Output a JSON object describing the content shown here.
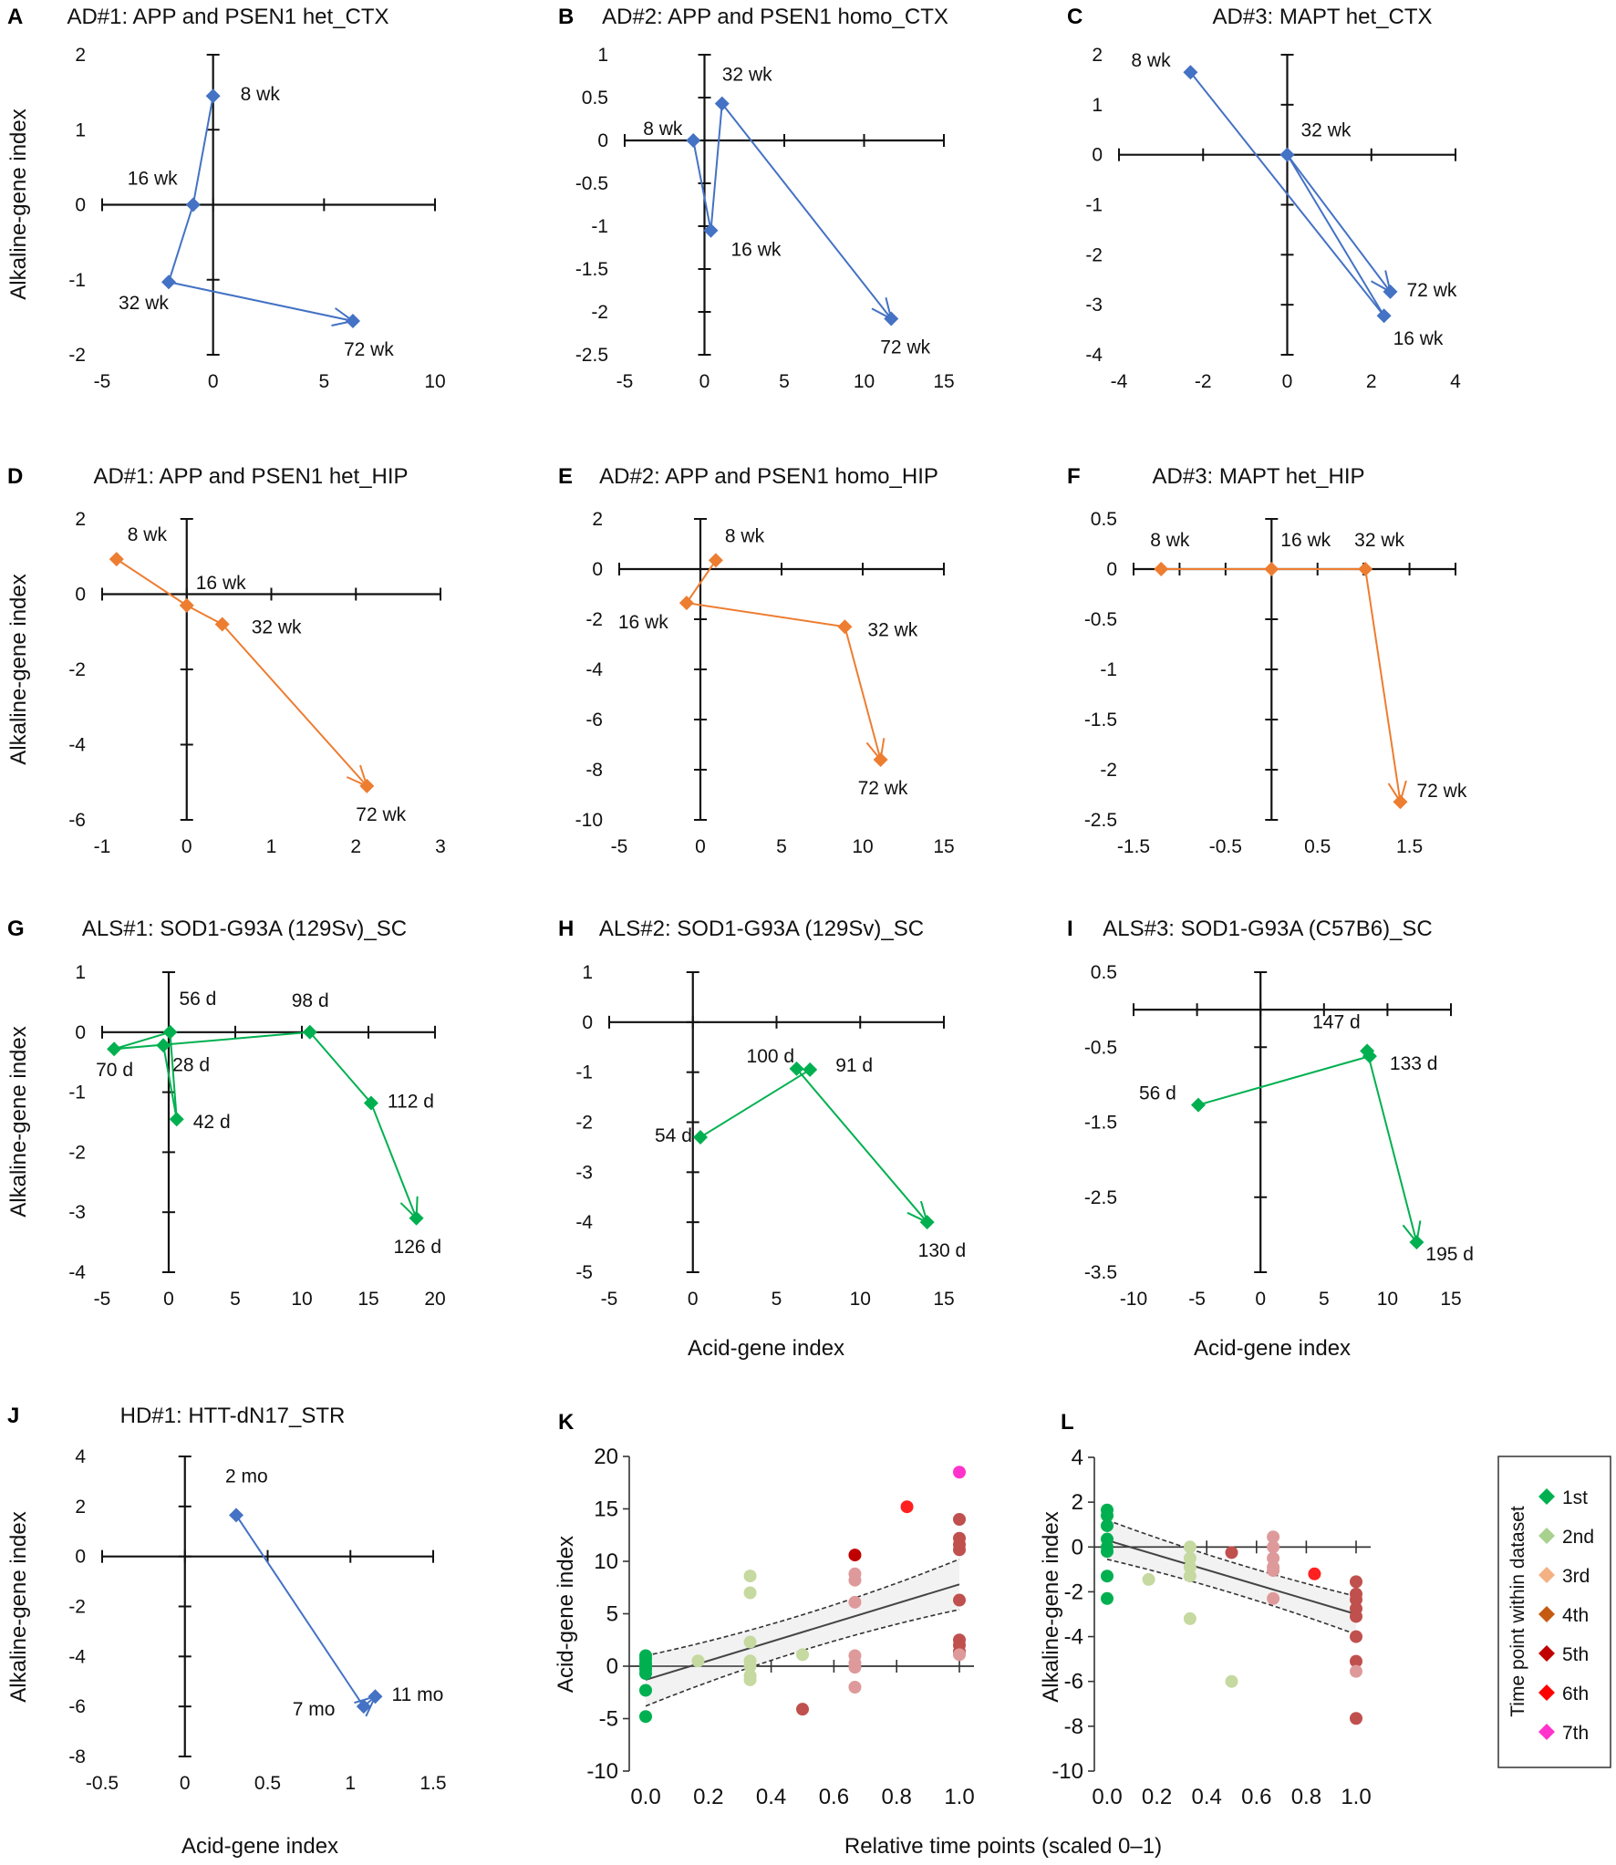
{
  "figure": {
    "shared_labels": {
      "y_alkaline": "Alkaline-gene index",
      "y_acid": "Acid-gene index",
      "x_acid": "Acid-gene index",
      "x_relative": "Relative time points (scaled 0–1)"
    },
    "colors": {
      "blue": "#4472C4",
      "orange": "#ED7D31",
      "green": "#00B050"
    }
  },
  "chart_data": [
    {
      "id": "A",
      "type": "line",
      "title": "AD#1: APP and PSEN1 het_CTX",
      "xlabel": "",
      "ylabel": "Alkaline-gene index",
      "xlim": [
        -5,
        10
      ],
      "ylim": [
        -2,
        2
      ],
      "xticks": [
        -5,
        0,
        5,
        10
      ],
      "xtick_labels": [
        "-5",
        "0",
        "5",
        "10"
      ],
      "yticks": [
        -2,
        -1,
        0,
        1,
        2
      ],
      "ytick_labels": [
        "-2",
        "-1",
        "0",
        "1",
        "2"
      ],
      "color": "blue",
      "points": [
        {
          "label": "8 wk",
          "x": 0.0,
          "y": 1.45
        },
        {
          "label": "16 wk",
          "x": -0.9,
          "y": 0.0
        },
        {
          "label": "32 wk",
          "x": -2.0,
          "y": -1.03
        },
        {
          "label": "72 wk",
          "x": 6.3,
          "y": -1.55
        }
      ]
    },
    {
      "id": "B",
      "type": "line",
      "title": "AD#2: APP and PSEN1 homo_CTX",
      "xlabel": "",
      "ylabel": "",
      "xlim": [
        -5,
        15
      ],
      "ylim": [
        -2.5,
        1
      ],
      "xticks": [
        -5,
        0,
        5,
        10,
        15
      ],
      "xtick_labels": [
        "-5",
        "0",
        "5",
        "10",
        "15"
      ],
      "yticks": [
        -2.5,
        -2,
        -1.5,
        -1,
        -0.5,
        0,
        0.5,
        1
      ],
      "ytick_labels": [
        "-2.5",
        "-2",
        "-1.5",
        "-1",
        "-0.5",
        "0",
        "0.5",
        "1"
      ],
      "color": "blue",
      "points": [
        {
          "label": "8 wk",
          "x": -0.7,
          "y": 0.0
        },
        {
          "label": "16 wk",
          "x": 0.4,
          "y": -1.05
        },
        {
          "label": "32 wk",
          "x": 1.1,
          "y": 0.43
        },
        {
          "label": "72 wk",
          "x": 11.7,
          "y": -2.08
        }
      ]
    },
    {
      "id": "C",
      "type": "line",
      "title": "AD#3: MAPT het_CTX",
      "xlabel": "",
      "ylabel": "",
      "xlim": [
        -4,
        4
      ],
      "ylim": [
        -4,
        2
      ],
      "xticks": [
        -4,
        -2,
        0,
        2,
        4
      ],
      "xtick_labels": [
        "-4",
        "-2",
        "0",
        "2",
        "4"
      ],
      "yticks": [
        -4,
        -3,
        -2,
        -1,
        0,
        1,
        2
      ],
      "ytick_labels": [
        "-4",
        "-3",
        "-2",
        "-1",
        "0",
        "1",
        "2"
      ],
      "color": "blue",
      "points": [
        {
          "label": "8 wk",
          "x": -2.3,
          "y": 1.65
        },
        {
          "label": "16 wk",
          "x": 2.3,
          "y": -3.22
        },
        {
          "label": "32 wk",
          "x": 0.0,
          "y": 0.0
        },
        {
          "label": "72  wk",
          "x": 2.45,
          "y": -2.74
        }
      ]
    },
    {
      "id": "D",
      "type": "line",
      "title": "AD#1: APP and PSEN1 het_HIP",
      "xlabel": "",
      "ylabel": "Alkaline-gene index",
      "xlim": [
        -1,
        3
      ],
      "ylim": [
        -6,
        2
      ],
      "xticks": [
        -1,
        0,
        1,
        2,
        3
      ],
      "xtick_labels": [
        "-1",
        "0",
        "1",
        "2",
        "3"
      ],
      "yticks": [
        -6,
        -4,
        -2,
        0,
        2
      ],
      "ytick_labels": [
        "-6",
        "-4",
        "-2",
        "0",
        "2"
      ],
      "color": "orange",
      "points": [
        {
          "label": "8 wk",
          "x": -0.83,
          "y": 0.93
        },
        {
          "label": "16 wk",
          "x": 0.0,
          "y": -0.3
        },
        {
          "label": "32 wk",
          "x": 0.42,
          "y": -0.8
        },
        {
          "label": "72 wk",
          "x": 2.13,
          "y": -5.1
        }
      ]
    },
    {
      "id": "E",
      "type": "line",
      "title": "AD#2: APP and PSEN1 homo_HIP",
      "xlabel": "",
      "ylabel": "",
      "xlim": [
        -5,
        15
      ],
      "ylim": [
        -10,
        2
      ],
      "xticks": [
        -5,
        0,
        5,
        10,
        15
      ],
      "xtick_labels": [
        "-5",
        "0",
        "5",
        "10",
        "15"
      ],
      "yticks": [
        -10,
        -8,
        -6,
        -4,
        -2,
        0,
        2
      ],
      "ytick_labels": [
        "-10",
        "-8",
        "-6",
        "-4",
        "-2",
        "0",
        "2"
      ],
      "color": "orange",
      "points": [
        {
          "label": "8 wk",
          "x": 0.95,
          "y": 0.35
        },
        {
          "label": "16 wk",
          "x": -0.85,
          "y": -1.35
        },
        {
          "label": "32 wk",
          "x": 8.9,
          "y": -2.3
        },
        {
          "label": "72 wk",
          "x": 11.1,
          "y": -7.6
        }
      ]
    },
    {
      "id": "F",
      "type": "line",
      "title": "AD#3: MAPT het_HIP",
      "xlabel": "",
      "ylabel": "",
      "xlim": [
        -1.5,
        2
      ],
      "ylim": [
        -2.5,
        0.5
      ],
      "xticks": [
        -1.5,
        -1,
        -0.5,
        0,
        0.5,
        1,
        1.5,
        2
      ],
      "xtick_labels": [
        "-1.5",
        "",
        "-0.5",
        "",
        "0.5",
        "",
        "1.5",
        ""
      ],
      "yticks": [
        -2.5,
        -2,
        -1.5,
        -1,
        -0.5,
        0,
        0.5
      ],
      "ytick_labels": [
        "-2.5",
        "-2",
        "-1.5",
        "-1",
        "-0.5",
        "0",
        "0.5"
      ],
      "color": "orange",
      "points": [
        {
          "label": "8 wk",
          "x": -1.2,
          "y": 0.0
        },
        {
          "label": "16 wk",
          "x": 0.0,
          "y": 0.0
        },
        {
          "label": "32 wk",
          "x": 1.02,
          "y": 0.0
        },
        {
          "label": "72 wk",
          "x": 1.4,
          "y": -2.32
        }
      ]
    },
    {
      "id": "G",
      "type": "line",
      "title": "ALS#1: SOD1-G93A (129Sv)_SC",
      "xlabel": "",
      "ylabel": "Alkaline-gene index",
      "xlim": [
        -5,
        20
      ],
      "ylim": [
        -4,
        1
      ],
      "xticks": [
        -5,
        0,
        5,
        10,
        15,
        20
      ],
      "xtick_labels": [
        "-5",
        "0",
        "5",
        "10",
        "15",
        "20"
      ],
      "yticks": [
        -4,
        -3,
        -2,
        -1,
        0,
        1
      ],
      "ytick_labels": [
        "-4",
        "-3",
        "-2",
        "-1",
        "0",
        "1"
      ],
      "color": "green",
      "points": [
        {
          "label": "28 d",
          "x": -0.4,
          "y": -0.22
        },
        {
          "label": "42 d",
          "x": 0.6,
          "y": -1.45
        },
        {
          "label": "56 d",
          "x": 0.1,
          "y": 0.0
        },
        {
          "label": "70 d",
          "x": -4.1,
          "y": -0.28
        },
        {
          "label": "98 d",
          "x": 10.6,
          "y": 0.0
        },
        {
          "label": "112 d",
          "x": 15.2,
          "y": -1.18
        },
        {
          "label": "126 d",
          "x": 18.6,
          "y": -3.1
        }
      ]
    },
    {
      "id": "H",
      "type": "line",
      "title": "ALS#2: SOD1-G93A (129Sv)_SC",
      "xlabel": "Acid-gene index",
      "ylabel": "",
      "xlim": [
        -5,
        15
      ],
      "ylim": [
        -5,
        1
      ],
      "xticks": [
        -5,
        0,
        5,
        10,
        15
      ],
      "xtick_labels": [
        "-5",
        "0",
        "5",
        "10",
        "15"
      ],
      "yticks": [
        -5,
        -4,
        -3,
        -2,
        -1,
        0,
        1
      ],
      "ytick_labels": [
        "-5",
        "-4",
        "-3",
        "-2",
        "-1",
        "0",
        "1"
      ],
      "color": "green",
      "points": [
        {
          "label": "54 d",
          "x": 0.45,
          "y": -2.3
        },
        {
          "label": "91 d",
          "x": 7.0,
          "y": -0.95
        },
        {
          "label": "100 d",
          "x": 6.2,
          "y": -0.93
        },
        {
          "label": "130 d",
          "x": 14.0,
          "y": -4.0
        }
      ]
    },
    {
      "id": "I",
      "type": "line",
      "title": "ALS#3: SOD1-G93A (C57B6)_SC",
      "xlabel": "Acid-gene index",
      "ylabel": "",
      "xlim": [
        -10,
        15
      ],
      "ylim": [
        -3.5,
        0.5
      ],
      "xticks": [
        -10,
        -5,
        0,
        5,
        10,
        15
      ],
      "xtick_labels": [
        "-10",
        "-5",
        "0",
        "5",
        "10",
        "15"
      ],
      "yticks": [
        -3.5,
        -2.5,
        -1.5,
        -0.5,
        0.5
      ],
      "ytick_labels": [
        "-3.5",
        "-2.5",
        "-1.5",
        "-0.5",
        "0.5"
      ],
      "color": "green",
      "points": [
        {
          "label": "56 d",
          "x": -4.9,
          "y": -1.27
        },
        {
          "label": "133 d",
          "x": 8.6,
          "y": -0.62
        },
        {
          "label": "147 d",
          "x": 8.4,
          "y": -0.55
        },
        {
          "label": "195 d",
          "x": 12.3,
          "y": -3.1
        }
      ]
    },
    {
      "id": "J",
      "type": "line",
      "title": "HD#1: HTT-dN17_STR",
      "xlabel": "Acid-gene index",
      "ylabel": "Alkaline-gene index",
      "xlim": [
        -0.5,
        1.5
      ],
      "ylim": [
        -8,
        4
      ],
      "xticks": [
        -0.5,
        0,
        0.5,
        1,
        1.5
      ],
      "xtick_labels": [
        "-0.5",
        "0",
        "0.5",
        "1",
        "1.5"
      ],
      "yticks": [
        -8,
        -6,
        -4,
        -2,
        0,
        2,
        4
      ],
      "ytick_labels": [
        "-8",
        "-6",
        "-4",
        "-2",
        "0",
        "2",
        "4"
      ],
      "color": "blue",
      "points": [
        {
          "label": "2 mo",
          "x": 0.31,
          "y": 1.65
        },
        {
          "label": "7 mo",
          "x": 1.08,
          "y": -6.0
        },
        {
          "label": "11 mo",
          "x": 1.15,
          "y": -5.6
        }
      ]
    },
    {
      "id": "K",
      "type": "scatter",
      "title": "",
      "xlabel": "Relative time points (scaled 0–1)",
      "ylabel": "Acid-gene index",
      "xlim": [
        0,
        1
      ],
      "ylim": [
        -10,
        20
      ],
      "xticks": [
        0,
        0.2,
        0.4,
        0.6,
        0.8,
        1.0
      ],
      "xtick_labels": [
        "0.0",
        "0.2",
        "0.4",
        "0.6",
        "0.8",
        "1.0"
      ],
      "yticks": [
        -10,
        -5,
        0,
        5,
        10,
        15,
        20
      ],
      "ytick_labels": [
        "-10",
        "-5",
        "0",
        "5",
        "10",
        "15",
        "20"
      ],
      "regression": {
        "x": [
          0,
          1
        ],
        "y": [
          -1.3,
          7.8
        ],
        "ci_upper": [
          1.0,
          10.2
        ],
        "ci_mid_upper": [
          3.2,
          6.2
        ],
        "ci_lower": [
          -3.8,
          5.4
        ],
        "ci_mid_lower": [
          0.1,
          3.3
        ]
      },
      "points": [
        {
          "x": 0.0,
          "y": 1.0,
          "rank": 1
        },
        {
          "x": 0.0,
          "y": 0.7,
          "rank": 1
        },
        {
          "x": 0.0,
          "y": 0.3,
          "rank": 1
        },
        {
          "x": 0.0,
          "y": 0.0,
          "rank": 1
        },
        {
          "x": 0.0,
          "y": -0.3,
          "rank": 1
        },
        {
          "x": 0.0,
          "y": -0.7,
          "rank": 1
        },
        {
          "x": 0.0,
          "y": -2.3,
          "rank": 1
        },
        {
          "x": 0.0,
          "y": -4.8,
          "rank": 1
        },
        {
          "x": 0.167,
          "y": 0.5,
          "rank": 2
        },
        {
          "x": 0.333,
          "y": 8.6,
          "rank": 2
        },
        {
          "x": 0.333,
          "y": 7.0,
          "rank": 2
        },
        {
          "x": 0.333,
          "y": 2.3,
          "rank": 2
        },
        {
          "x": 0.333,
          "y": 0.5,
          "rank": 2
        },
        {
          "x": 0.333,
          "y": 0.0,
          "rank": 2
        },
        {
          "x": 0.333,
          "y": -0.9,
          "rank": 2
        },
        {
          "x": 0.333,
          "y": -1.3,
          "rank": 2
        },
        {
          "x": 0.5,
          "y": 1.1,
          "rank": 2
        },
        {
          "x": 0.5,
          "y": -4.1,
          "rank": 4
        },
        {
          "x": 0.667,
          "y": 10.6,
          "rank": 5
        },
        {
          "x": 0.667,
          "y": 8.8,
          "rank": 3
        },
        {
          "x": 0.667,
          "y": 8.2,
          "rank": 3
        },
        {
          "x": 0.667,
          "y": 6.1,
          "rank": 3
        },
        {
          "x": 0.667,
          "y": 1.0,
          "rank": 3
        },
        {
          "x": 0.667,
          "y": 0.3,
          "rank": 3
        },
        {
          "x": 0.667,
          "y": -0.1,
          "rank": 3
        },
        {
          "x": 0.667,
          "y": -2.0,
          "rank": 3
        },
        {
          "x": 0.833,
          "y": 15.2,
          "rank": 6
        },
        {
          "x": 1.0,
          "y": 18.5,
          "rank": 7
        },
        {
          "x": 1.0,
          "y": 14.0,
          "rank": 4
        },
        {
          "x": 1.0,
          "y": 12.2,
          "rank": 4
        },
        {
          "x": 1.0,
          "y": 11.6,
          "rank": 4
        },
        {
          "x": 1.0,
          "y": 11.1,
          "rank": 4
        },
        {
          "x": 1.0,
          "y": 6.3,
          "rank": 4
        },
        {
          "x": 1.0,
          "y": 2.5,
          "rank": 4
        },
        {
          "x": 1.0,
          "y": 2.0,
          "rank": 4
        },
        {
          "x": 1.0,
          "y": 1.4,
          "rank": 4
        },
        {
          "x": 1.0,
          "y": 1.1,
          "rank": 3
        }
      ]
    },
    {
      "id": "L",
      "type": "scatter",
      "title": "",
      "xlabel": "Relative time points (scaled 0–1)",
      "ylabel": "Alkaline-gene index",
      "xlim": [
        0,
        1
      ],
      "ylim": [
        -10,
        4
      ],
      "xticks": [
        0,
        0.2,
        0.4,
        0.6,
        0.8,
        1.0
      ],
      "xtick_labels": [
        "0.0",
        "0.2",
        "0.4",
        "0.6",
        "0.8",
        "1.0"
      ],
      "yticks": [
        -10,
        -8,
        -6,
        -4,
        -2,
        0,
        2,
        4
      ],
      "ytick_labels": [
        "-10",
        "-8",
        "-6",
        "-4",
        "-2",
        "0",
        "2",
        "4"
      ],
      "regression": {
        "x": [
          0,
          1
        ],
        "y": [
          0.3,
          -3.0
        ],
        "ci_upper": [
          1.2,
          -2.2
        ],
        "ci_lower": [
          -0.55,
          -3.9
        ]
      },
      "points": [
        {
          "x": 0.0,
          "y": 1.65,
          "rank": 1
        },
        {
          "x": 0.0,
          "y": 1.4,
          "rank": 1
        },
        {
          "x": 0.0,
          "y": 0.95,
          "rank": 1
        },
        {
          "x": 0.0,
          "y": 0.35,
          "rank": 1
        },
        {
          "x": 0.0,
          "y": 0.0,
          "rank": 1
        },
        {
          "x": 0.0,
          "y": -0.2,
          "rank": 1
        },
        {
          "x": 0.0,
          "y": -1.3,
          "rank": 1
        },
        {
          "x": 0.0,
          "y": -2.3,
          "rank": 1
        },
        {
          "x": 0.167,
          "y": -1.45,
          "rank": 2
        },
        {
          "x": 0.333,
          "y": 0.0,
          "rank": 2
        },
        {
          "x": 0.333,
          "y": -0.5,
          "rank": 2
        },
        {
          "x": 0.333,
          "y": -0.9,
          "rank": 2
        },
        {
          "x": 0.333,
          "y": -1.3,
          "rank": 2
        },
        {
          "x": 0.333,
          "y": -3.2,
          "rank": 2
        },
        {
          "x": 0.5,
          "y": -6.0,
          "rank": 2
        },
        {
          "x": 0.5,
          "y": -0.25,
          "rank": 4
        },
        {
          "x": 0.667,
          "y": 0.45,
          "rank": 3
        },
        {
          "x": 0.667,
          "y": 0.0,
          "rank": 3
        },
        {
          "x": 0.667,
          "y": -0.5,
          "rank": 3
        },
        {
          "x": 0.667,
          "y": -0.9,
          "rank": 3
        },
        {
          "x": 0.667,
          "y": -1.05,
          "rank": 3
        },
        {
          "x": 0.667,
          "y": -2.3,
          "rank": 3
        },
        {
          "x": 0.833,
          "y": -1.2,
          "rank": 6
        },
        {
          "x": 1.0,
          "y": -1.55,
          "rank": 4
        },
        {
          "x": 1.0,
          "y": -2.1,
          "rank": 4
        },
        {
          "x": 1.0,
          "y": -2.35,
          "rank": 4
        },
        {
          "x": 1.0,
          "y": -2.75,
          "rank": 4
        },
        {
          "x": 1.0,
          "y": -3.1,
          "rank": 4
        },
        {
          "x": 1.0,
          "y": -4.0,
          "rank": 4
        },
        {
          "x": 1.0,
          "y": -5.1,
          "rank": 4
        },
        {
          "x": 1.0,
          "y": -5.55,
          "rank": 3
        },
        {
          "x": 1.0,
          "y": -7.65,
          "rank": 4
        }
      ]
    }
  ],
  "legend": {
    "title": "Time point within dataset",
    "placement": "right",
    "items": [
      {
        "label": "1st",
        "color": "#00B050"
      },
      {
        "label": "2nd",
        "color": "#A9D18E"
      },
      {
        "label": "3rd",
        "color": "#F4B183"
      },
      {
        "label": "4th",
        "color": "#C55A11"
      },
      {
        "label": "5th",
        "color": "#C00000"
      },
      {
        "label": "6th",
        "color": "#FF0000"
      },
      {
        "label": "7th",
        "color": "#FF33CC"
      }
    ]
  },
  "scatter_point_colors": {
    "1": "#00B050",
    "2": "#C5D9A0",
    "3": "#DE9A9A",
    "4": "#C0504D",
    "5": "#C00000",
    "6": "#FF2020",
    "7": "#FF33CC"
  }
}
